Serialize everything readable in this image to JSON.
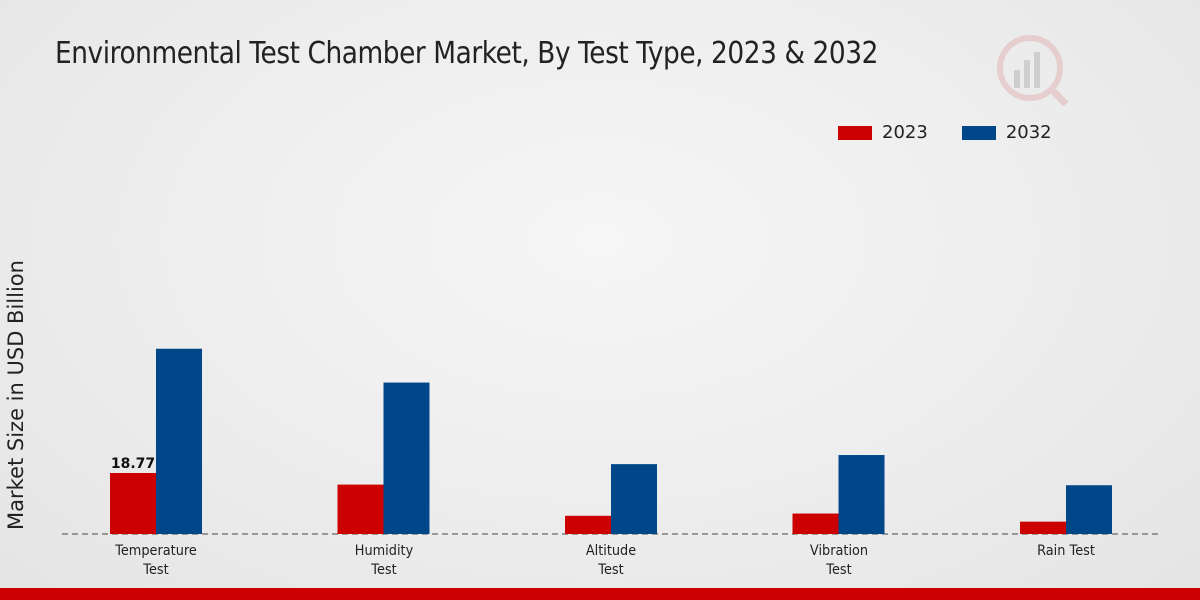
{
  "chart_data": {
    "type": "bar",
    "title": "Environmental Test Chamber Market, By Test Type, 2023 & 2032",
    "xlabel": "",
    "ylabel": "Market Size in USD Billion",
    "categories": [
      "Temperature\nTest",
      "Humidity\nTest",
      "Altitude\nTest",
      "Vibration\nTest",
      "Rain Test"
    ],
    "series": [
      {
        "name": "2023",
        "color": "#cc0000",
        "values": [
          18.77,
          15.2,
          5.6,
          6.3,
          3.8
        ]
      },
      {
        "name": "2032",
        "color": "#00478a",
        "values": [
          57.0,
          46.6,
          21.5,
          24.3,
          15.0
        ]
      }
    ],
    "data_labels": [
      {
        "series": 0,
        "index": 0,
        "text": "18.77"
      }
    ],
    "ylim": [
      0,
      120
    ],
    "grid": false,
    "legend_position": "top-right"
  }
}
